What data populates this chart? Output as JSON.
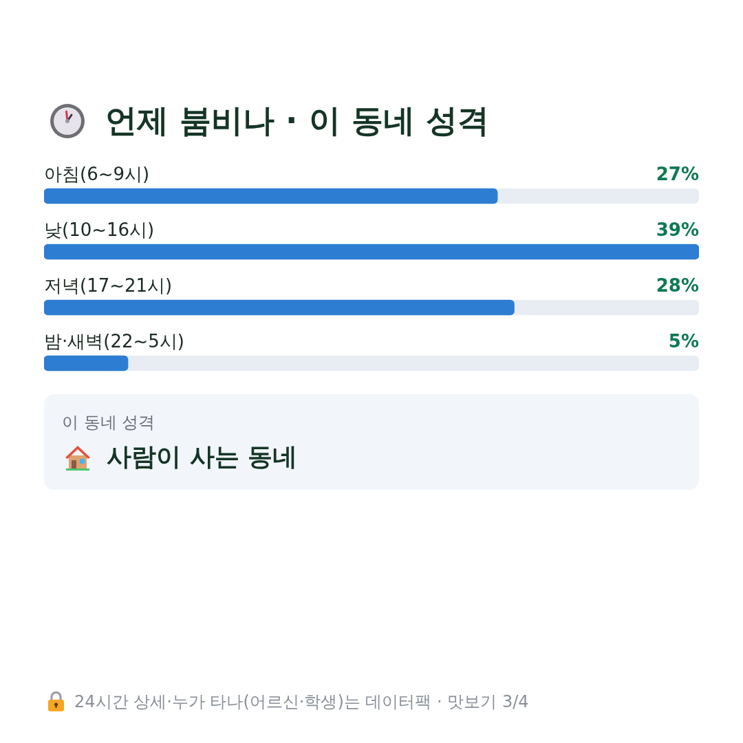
{
  "chart_data": {
    "type": "bar",
    "orientation": "horizontal",
    "title": "언제 붐비나 · 이 동네 성격",
    "categories": [
      "아침(6~9시)",
      "낮(10~16시)",
      "저녁(17~21시)",
      "밤·새벽(22~5시)"
    ],
    "values": [
      27,
      39,
      28,
      5
    ],
    "color": "#2d7dd2",
    "value_labels": [
      "27%",
      "39%",
      "28%",
      "5%"
    ],
    "tick_labels": "y",
    "annotations": [
      "이 동네 성격",
      "사람이 사는 동네",
      "24시간 상세·누가 타나(어르신·학생)는 데이터팩 · 맛보기 3/4"
    ]
  }
}
